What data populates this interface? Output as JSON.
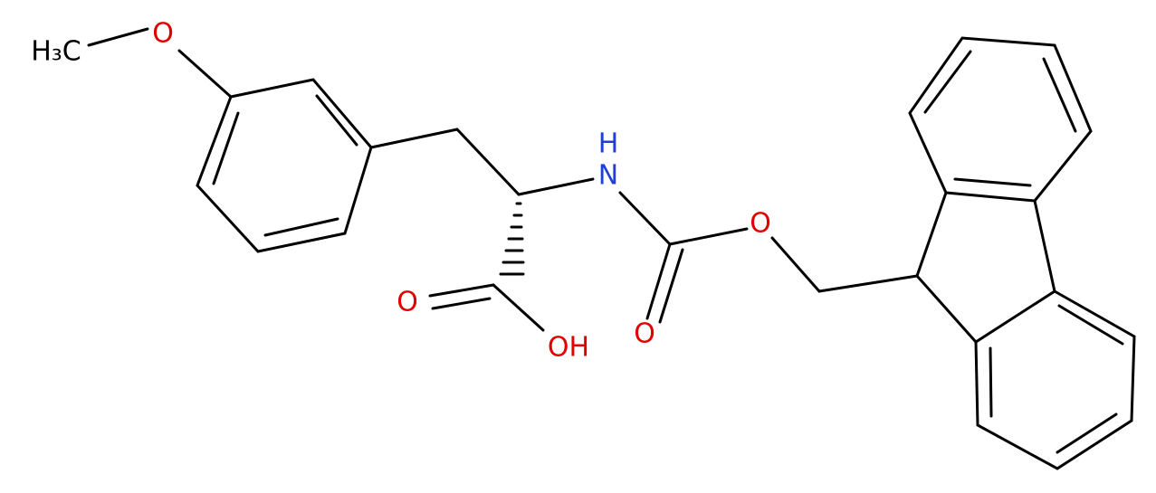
{
  "atoms": [
    {
      "label": "H₃C"
    },
    {
      "label": "O"
    },
    {
      "label": "H"
    },
    {
      "label": "N"
    },
    {
      "label": "O"
    },
    {
      "label": "OH"
    },
    {
      "label": "O"
    },
    {
      "label": "O"
    }
  ]
}
